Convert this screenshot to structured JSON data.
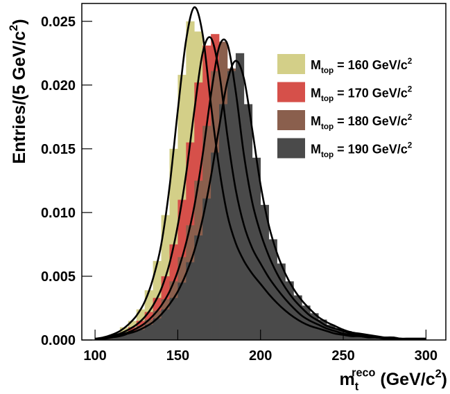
{
  "chart_data": {
    "type": "histogram",
    "x_label": [
      "m",
      "t",
      "reco",
      " (GeV/c",
      "2",
      ")"
    ],
    "y_label": [
      "Entries/(5 GeV/c",
      "2",
      ")"
    ],
    "bins": [
      100,
      105,
      110,
      115,
      120,
      125,
      130,
      135,
      140,
      145,
      150,
      155,
      160,
      165,
      170,
      175,
      180,
      185,
      190,
      195,
      200,
      205,
      210,
      215,
      220,
      225,
      230,
      235,
      240,
      245,
      250,
      255,
      260,
      265,
      270,
      275,
      280,
      285,
      290,
      295,
      300
    ],
    "fit_x": [
      100,
      105,
      110,
      115,
      120,
      125,
      130,
      135,
      140,
      145,
      150,
      155,
      160,
      165,
      170,
      175,
      180,
      185,
      190,
      195,
      200,
      205,
      210,
      215,
      220,
      225,
      230,
      235,
      240,
      245,
      250,
      255,
      260,
      265,
      270,
      275,
      280,
      285,
      290,
      295,
      300
    ],
    "fit_color": "#000000",
    "xlim": [
      92,
      312
    ],
    "ylim": [
      0,
      0.0264
    ],
    "xticks": [
      100,
      150,
      200,
      250,
      300
    ],
    "yticks": [
      {
        "value": 0,
        "label": "0.000"
      },
      {
        "value": 0.005,
        "label": "0.005"
      },
      {
        "value": 0.01,
        "label": "0.010"
      },
      {
        "value": 0.015,
        "label": "0.015"
      },
      {
        "value": 0.02,
        "label": "0.020"
      },
      {
        "value": 0.025,
        "label": "0.025"
      }
    ],
    "legend": "upper right",
    "series": [
      {
        "name": [
          "M",
          "top",
          " = 160 GeV/c",
          "2"
        ],
        "color": "#d3cf88",
        "values": [
          0.0001,
          0.0003,
          0.0005,
          0.001,
          0.0015,
          0.0024,
          0.0039,
          0.0062,
          0.0098,
          0.015,
          0.0208,
          0.025,
          0.0242,
          0.0205,
          0.016,
          0.0115,
          0.0085,
          0.0068,
          0.0056,
          0.0047,
          0.004,
          0.0032,
          0.0026,
          0.002,
          0.0016,
          0.0012,
          0.001,
          0.0008,
          0.0006,
          0.0004,
          0.0003,
          0.0003,
          0.0002,
          0.0002,
          0.0001,
          0.0001,
          0.0001,
          0.0001,
          0.0001,
          0.0001
        ],
        "fit_values": [
          0.0001,
          0.0002,
          0.0004,
          0.0007,
          0.0012,
          0.0019,
          0.003,
          0.0048,
          0.0075,
          0.012,
          0.018,
          0.0235,
          0.0261,
          0.024,
          0.0185,
          0.0135,
          0.0098,
          0.0076,
          0.0062,
          0.0052,
          0.0044,
          0.0036,
          0.0029,
          0.0023,
          0.0018,
          0.0014,
          0.0011,
          0.0009,
          0.0007,
          0.0005,
          0.0004,
          0.0003,
          0.0003,
          0.0002,
          0.0002,
          0.0001,
          0.0001,
          0.0001,
          0.0001,
          0.0001,
          0.0001
        ]
      },
      {
        "name": [
          "M",
          "top",
          " = 170 GeV/c",
          "2"
        ],
        "color": "#d6504a",
        "values": [
          0.0001,
          0.0002,
          0.0004,
          0.0006,
          0.001,
          0.0015,
          0.0022,
          0.0033,
          0.005,
          0.0075,
          0.011,
          0.0155,
          0.0202,
          0.0231,
          0.024,
          0.0185,
          0.0139,
          0.0104,
          0.0081,
          0.0066,
          0.0054,
          0.0044,
          0.0036,
          0.0028,
          0.0022,
          0.0017,
          0.0013,
          0.001,
          0.0008,
          0.0006,
          0.0004,
          0.0003,
          0.0003,
          0.0002,
          0.0002,
          0.0001,
          0.0001,
          0.0001,
          0.0001,
          0.0001
        ],
        "fit_values": [
          0.0001,
          0.0001,
          0.0003,
          0.0005,
          0.0008,
          0.0012,
          0.0018,
          0.0027,
          0.004,
          0.006,
          0.009,
          0.013,
          0.018,
          0.0225,
          0.0237,
          0.021,
          0.016,
          0.0118,
          0.009,
          0.0072,
          0.006,
          0.0049,
          0.004,
          0.0032,
          0.0025,
          0.0019,
          0.0015,
          0.0012,
          0.0009,
          0.0007,
          0.0005,
          0.0004,
          0.0003,
          0.0003,
          0.0002,
          0.0002,
          0.0001,
          0.0001,
          0.0001,
          0.0001,
          0.0001
        ]
      },
      {
        "name": [
          "M",
          "top",
          " = 180 GeV/c",
          "2"
        ],
        "color": "#8a5f4d",
        "values": [
          0.0001,
          0.0001,
          0.0003,
          0.0005,
          0.0007,
          0.0011,
          0.0016,
          0.0023,
          0.0032,
          0.0046,
          0.0065,
          0.009,
          0.0125,
          0.0168,
          0.0211,
          0.0234,
          0.0213,
          0.017,
          0.0126,
          0.0096,
          0.0075,
          0.0059,
          0.0046,
          0.0036,
          0.0028,
          0.0022,
          0.0017,
          0.0013,
          0.001,
          0.0008,
          0.0006,
          0.0004,
          0.0003,
          0.0002,
          0.0002,
          0.0002,
          0.0001,
          0.0001,
          0.0001,
          0.0001
        ],
        "fit_values": [
          0.0001,
          0.0001,
          0.0002,
          0.0004,
          0.0006,
          0.0009,
          0.0013,
          0.0019,
          0.0027,
          0.0038,
          0.0054,
          0.0076,
          0.0105,
          0.0145,
          0.0192,
          0.023,
          0.0232,
          0.0195,
          0.0145,
          0.0108,
          0.0084,
          0.0066,
          0.0052,
          0.0041,
          0.0032,
          0.0025,
          0.0019,
          0.0015,
          0.0011,
          0.0009,
          0.0007,
          0.0005,
          0.0004,
          0.0003,
          0.0002,
          0.0002,
          0.0002,
          0.0001,
          0.0001,
          0.0001,
          0.0001
        ]
      },
      {
        "name": [
          "M",
          "top",
          " = 190 GeV/c",
          "2"
        ],
        "color": "#4a4a4a",
        "values": [
          0.0001,
          0.0001,
          0.0002,
          0.0004,
          0.0006,
          0.0008,
          0.0012,
          0.0017,
          0.0024,
          0.0033,
          0.0045,
          0.0061,
          0.0082,
          0.0111,
          0.0147,
          0.0185,
          0.0211,
          0.0225,
          0.0185,
          0.0143,
          0.0106,
          0.0079,
          0.006,
          0.0046,
          0.0035,
          0.0027,
          0.0021,
          0.0016,
          0.0012,
          0.0009,
          0.0007,
          0.0005,
          0.0004,
          0.0003,
          0.0002,
          0.0002,
          0.0001,
          0.0001,
          0.0001,
          0.0001
        ],
        "fit_values": [
          0.0001,
          0.0001,
          0.0002,
          0.0003,
          0.0005,
          0.0007,
          0.001,
          0.0014,
          0.002,
          0.0028,
          0.0038,
          0.0052,
          0.007,
          0.0095,
          0.0128,
          0.0167,
          0.0203,
          0.0219,
          0.0205,
          0.0165,
          0.0122,
          0.009,
          0.0068,
          0.0052,
          0.004,
          0.0031,
          0.0024,
          0.0018,
          0.0014,
          0.0011,
          0.0008,
          0.0006,
          0.0005,
          0.0004,
          0.0003,
          0.0002,
          0.0002,
          0.0001,
          0.0001,
          0.0001,
          0.0001
        ]
      }
    ]
  }
}
